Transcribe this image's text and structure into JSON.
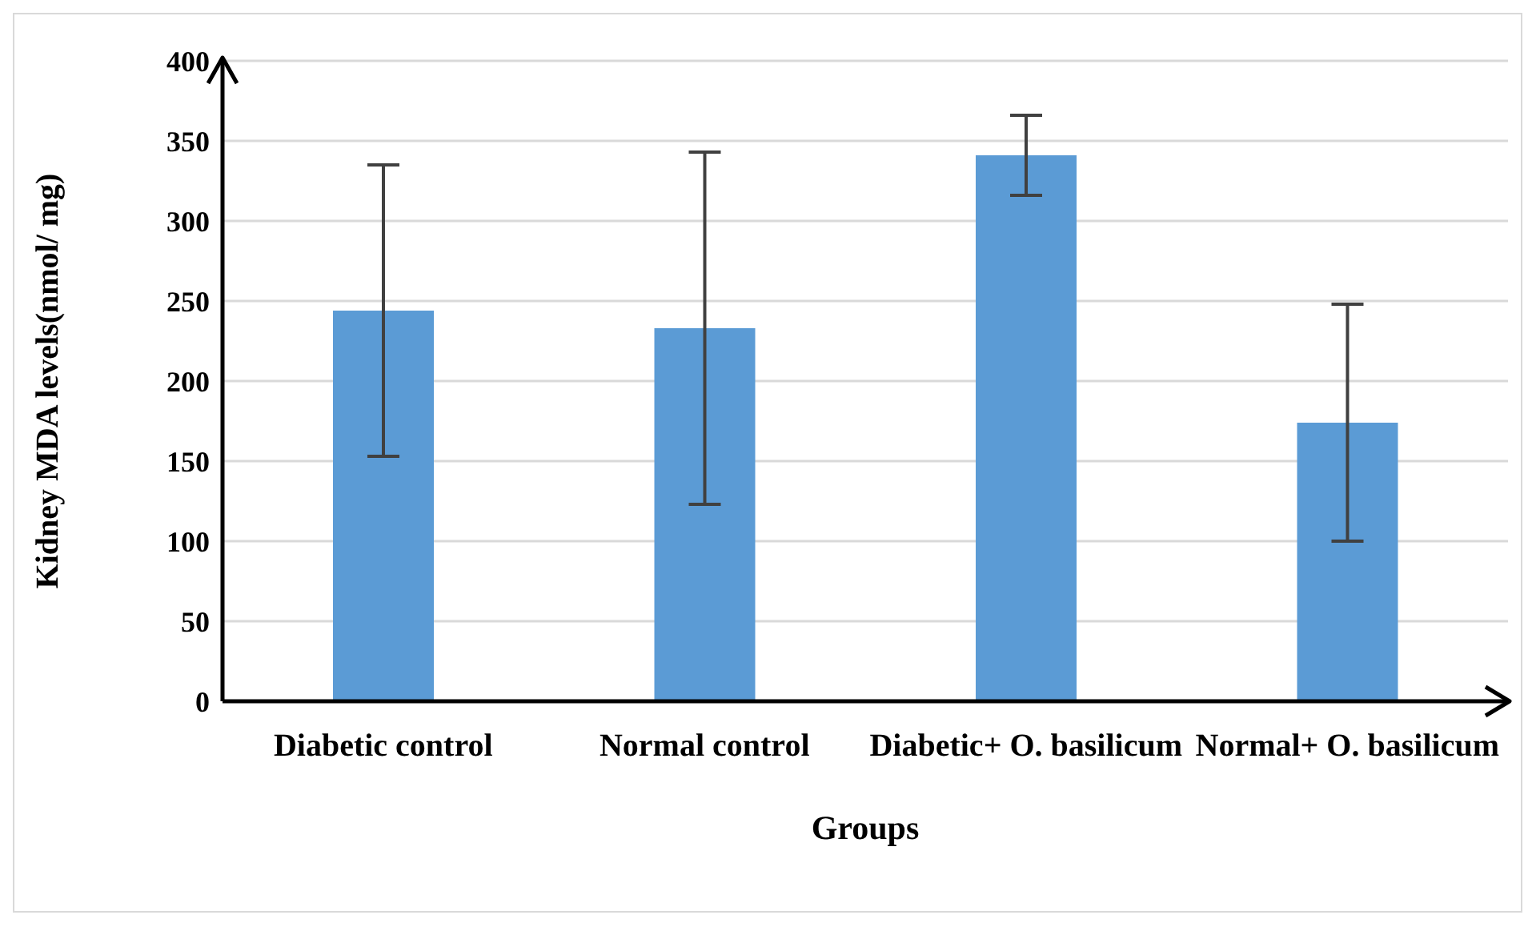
{
  "chart_data": {
    "type": "bar",
    "xlabel": "Groups",
    "ylabel": "Kidney MDA levels(nmol/ mg)",
    "categories": [
      "Diabetic control",
      "Normal control",
      "Diabetic+ O. basilicum",
      "Normal+ O. basilicum"
    ],
    "values": [
      244,
      233,
      341,
      174
    ],
    "errors": [
      91,
      110,
      25,
      74
    ],
    "color": "#5b9bd5",
    "ylim": [
      0,
      400
    ],
    "yticks": [
      0,
      50,
      100,
      150,
      200,
      250,
      300,
      350,
      400
    ],
    "grid": "y"
  }
}
